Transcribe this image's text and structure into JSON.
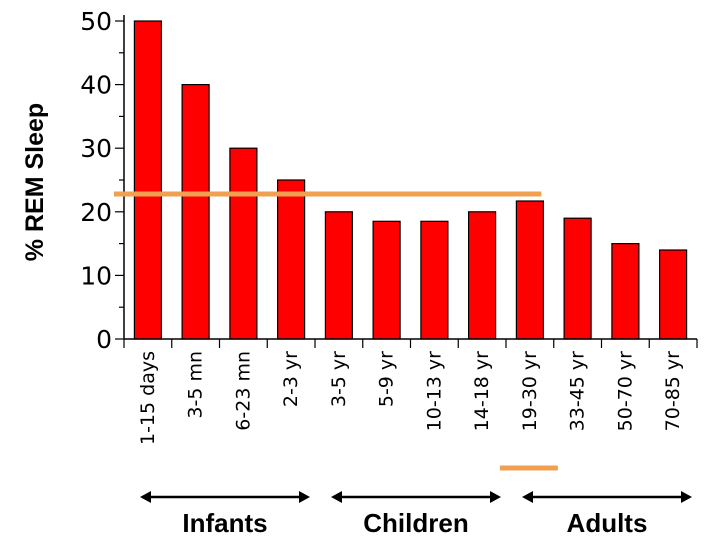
{
  "chart_data": {
    "type": "bar",
    "title": "",
    "xlabel": "",
    "ylabel": "% REM Sleep",
    "ylim": [
      0,
      50
    ],
    "yticks": [
      "0",
      "10",
      "20",
      "30",
      "40",
      "50"
    ],
    "categories": [
      "1-15 days",
      "3-5 mn",
      "6-23 mn",
      "2-3 yr",
      "3-5 yr",
      "5-9 yr",
      "10-13 yr",
      "14-18 yr",
      "19-30 yr",
      "33-45 yr",
      "50-70 yr",
      "70-85 yr"
    ],
    "values": [
      50,
      40,
      30,
      25,
      20,
      18.5,
      18.5,
      20,
      21.7,
      19,
      15,
      14
    ],
    "bar_color": "#ff0000",
    "reference_line": {
      "value": 22.8,
      "from_category": "1-15 days",
      "to_category": "19-30 yr",
      "color": "#f0a050"
    },
    "highlight_category": "19-30 yr",
    "groups": [
      {
        "label": "Infants",
        "from_category": "1-15 days",
        "to_category": "2-3 yr"
      },
      {
        "label": "Children",
        "from_category": "3-5 yr",
        "to_category": "14-18 yr"
      },
      {
        "label": "Adults",
        "from_category": "19-30 yr",
        "to_category": "70-85 yr"
      }
    ]
  }
}
